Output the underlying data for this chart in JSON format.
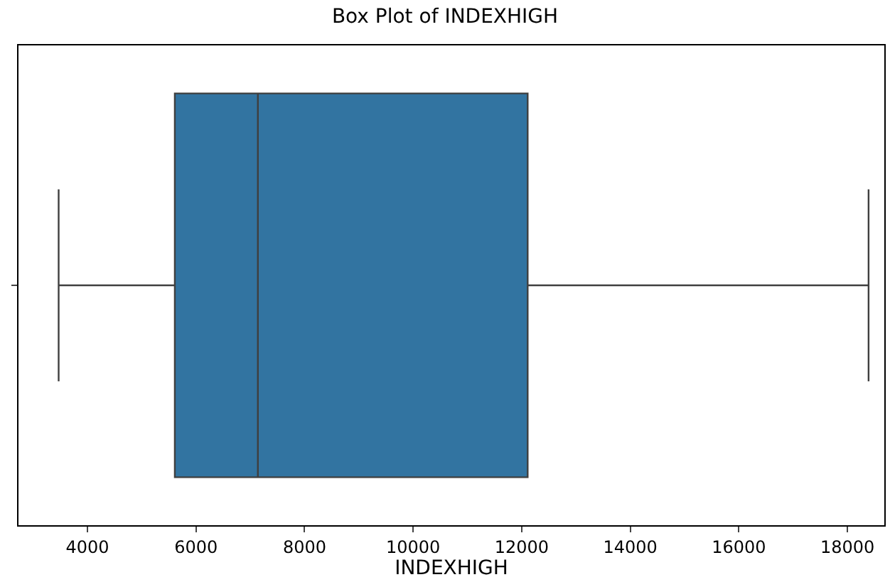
{
  "chart_data": {
    "type": "box",
    "title": "Box Plot of INDEXHIGH",
    "xlabel": "INDEXHIGH",
    "orientation": "horizontal",
    "categories": [
      null
    ],
    "color": "#3274a1",
    "boxes": [
      {
        "low": 3470,
        "q1": 5610,
        "median": 7140,
        "q3": 12110,
        "high": 18390
      }
    ],
    "xlim": [
      2730,
      18680
    ],
    "xticks": [
      4000,
      6000,
      8000,
      10000,
      12000,
      14000,
      16000,
      18000
    ],
    "grid": false,
    "legend": false,
    "tick_labels": "x"
  }
}
